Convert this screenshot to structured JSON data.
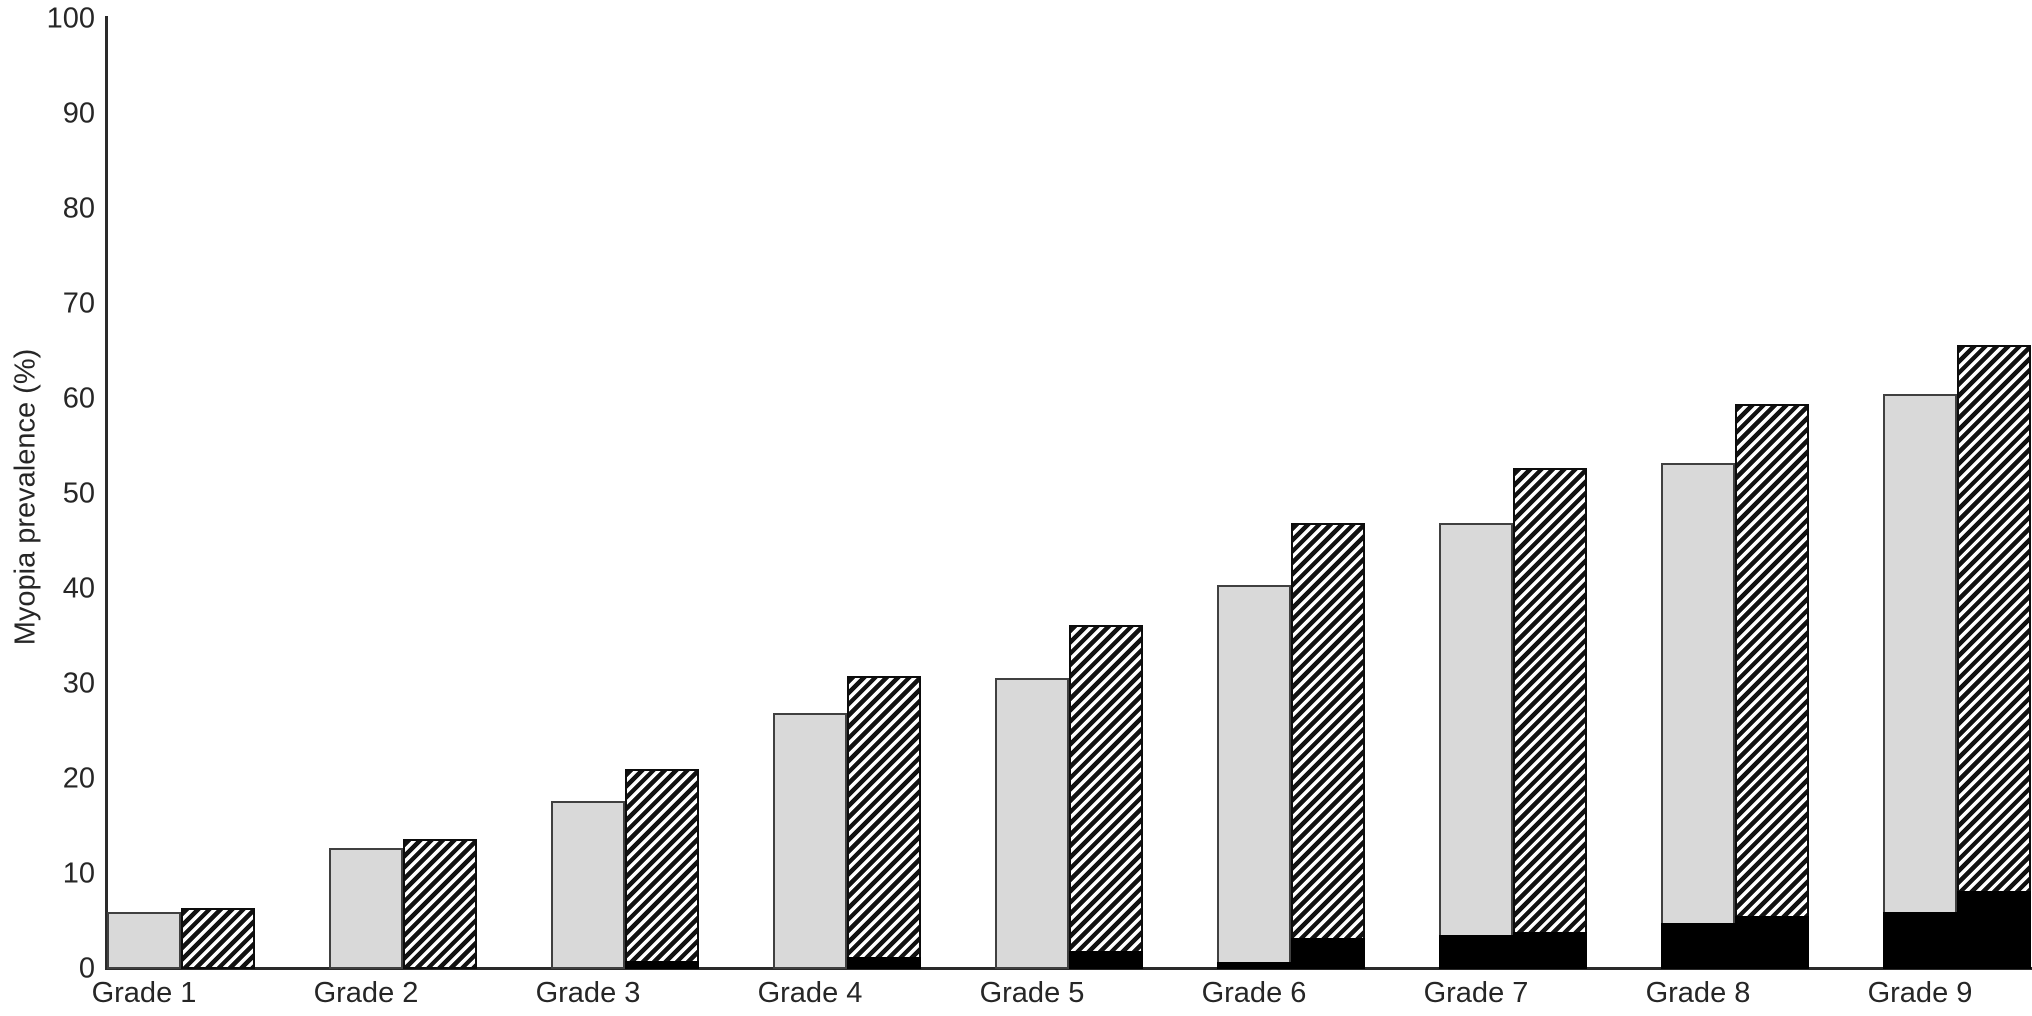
{
  "chart_data": {
    "type": "bar",
    "title": "",
    "ylabel": "Myopia prevalence (%)",
    "xlabel": "",
    "ylim": [
      0,
      100
    ],
    "yticks": [
      0,
      10,
      20,
      30,
      40,
      50,
      60,
      70,
      80,
      90,
      100
    ],
    "grid": false,
    "legend_position": "none",
    "categories": [
      "Grade 1",
      "Grade 2",
      "Grade 3",
      "Grade 4",
      "Grade 5",
      "Grade 6",
      "Grade 7",
      "Grade 8",
      "Grade 9"
    ],
    "series": [
      {
        "name": "light-gray-solid-bars",
        "pattern": "solid",
        "fill_color": "#d9d9d9",
        "border_color": "#404040",
        "values": [
          6.0,
          12.7,
          17.7,
          26.9,
          30.6,
          40.4,
          46.9,
          53.3,
          60.5
        ],
        "black_segment_values": [
          0,
          0,
          0,
          0,
          0,
          0.7,
          3.6,
          4.8,
          6.0
        ]
      },
      {
        "name": "diagonal-hatched-bars",
        "pattern": "diagonal-hatch-bottomleft-to-topright",
        "fill_color": "#ffffff",
        "stripe_color": "#121212",
        "border_color": "#0d0d0d",
        "values": [
          6.4,
          13.7,
          21.1,
          30.8,
          36.2,
          46.9,
          52.7,
          59.5,
          65.7
        ],
        "black_segment_values": [
          0,
          0,
          0.8,
          1.3,
          1.9,
          3.3,
          3.9,
          5.6,
          8.2
        ]
      }
    ],
    "black_segment_color": "#000000",
    "axis_color": "#2a2a2a",
    "text_color": "#262626"
  }
}
